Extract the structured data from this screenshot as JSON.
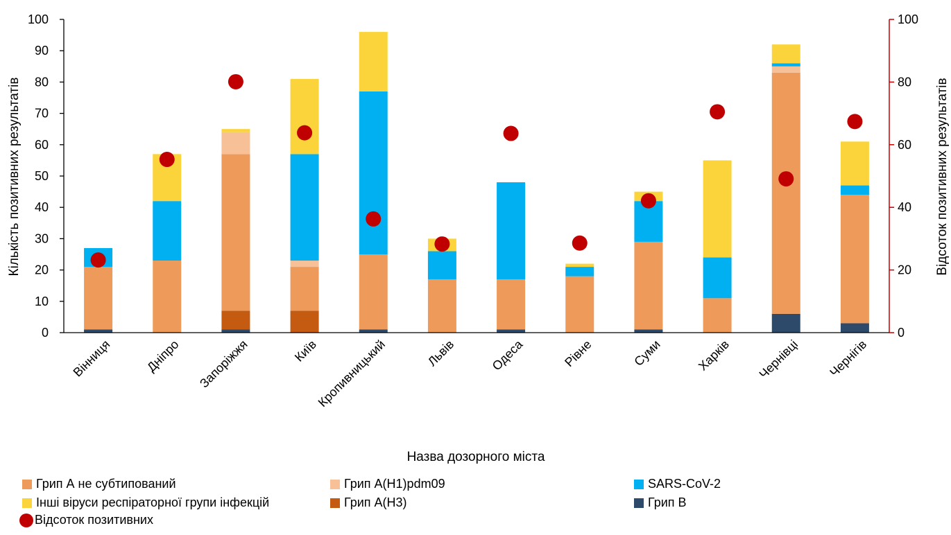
{
  "chart_data": {
    "type": "bar",
    "stacked": true,
    "xlabel": "Назва дозорного міста",
    "ylabel": "Кількість позитивних результатів",
    "y2label": "Відсоток позитивних результатів",
    "ylim": [
      0,
      100
    ],
    "y2lim": [
      0,
      100
    ],
    "yticks": [
      "0",
      "10",
      "20",
      "30",
      "40",
      "50",
      "60",
      "70",
      "80",
      "90",
      "100"
    ],
    "y2ticks": [
      "0",
      "20",
      "40",
      "60",
      "80",
      "100"
    ],
    "categories": [
      "Вінниця",
      "Дніпро",
      "Запоріжжя",
      "Київ",
      "Кропивницький",
      "Львів",
      "Одеса",
      "Рівне",
      "Суми",
      "Харків",
      "Чернівці",
      "Чернігів"
    ],
    "series": [
      {
        "name": "Грип В",
        "color": "#2e4a6b",
        "values": [
          1,
          0,
          1,
          0,
          1,
          0,
          1,
          0,
          1,
          0,
          6,
          3
        ]
      },
      {
        "name": "Грип A(H3)",
        "color": "#c55a11",
        "values": [
          0,
          0,
          6,
          7,
          0,
          0,
          0,
          0,
          0,
          0,
          0,
          0
        ]
      },
      {
        "name": "Грип А не субтипований",
        "color": "#ed9a5b",
        "values": [
          20,
          23,
          50,
          14,
          24,
          17,
          16,
          18,
          28,
          11,
          77,
          41
        ]
      },
      {
        "name": "Грип A(H1)pdm09",
        "color": "#f8c096",
        "values": [
          0,
          0,
          7,
          2,
          0,
          0,
          0,
          0,
          0,
          0,
          2,
          0
        ]
      },
      {
        "name": "SARS-CoV-2",
        "color": "#00b0f0",
        "values": [
          6,
          19,
          0,
          34,
          52,
          9,
          31,
          3,
          13,
          13,
          1,
          3
        ]
      },
      {
        "name": "Інші віруси респіраторної групи інфекцій",
        "color": "#fbd43b",
        "values": [
          0,
          15,
          1,
          24,
          19,
          4,
          0,
          1,
          3,
          31,
          6,
          14
        ]
      }
    ],
    "line_series": {
      "name": "Відсоток позитивних",
      "axis": "right",
      "color": "#c00000",
      "values": [
        23.2,
        55.3,
        80.1,
        63.8,
        36.3,
        28.3,
        63.6,
        28.6,
        42.1,
        70.5,
        49.1,
        67.4
      ]
    },
    "legend": [
      {
        "label": "Грип А не субтипований",
        "kind": "swatch",
        "color": "#ed9a5b"
      },
      {
        "label": "Грип A(H1)pdm09",
        "kind": "swatch",
        "color": "#f8c096"
      },
      {
        "label": "SARS-CoV-2",
        "kind": "swatch",
        "color": "#00b0f0"
      },
      {
        "label": "Інші віруси респіраторної групи інфекцій",
        "kind": "swatch",
        "color": "#fbd43b"
      },
      {
        "label": "Грип A(H3)",
        "kind": "swatch",
        "color": "#c55a11"
      },
      {
        "label": "Грип В",
        "kind": "swatch",
        "color": "#2e4a6b"
      },
      {
        "label": "Відсоток позитивних",
        "kind": "dot",
        "color": "#c00000"
      }
    ],
    "legend_position": "bottom",
    "grid": false
  }
}
